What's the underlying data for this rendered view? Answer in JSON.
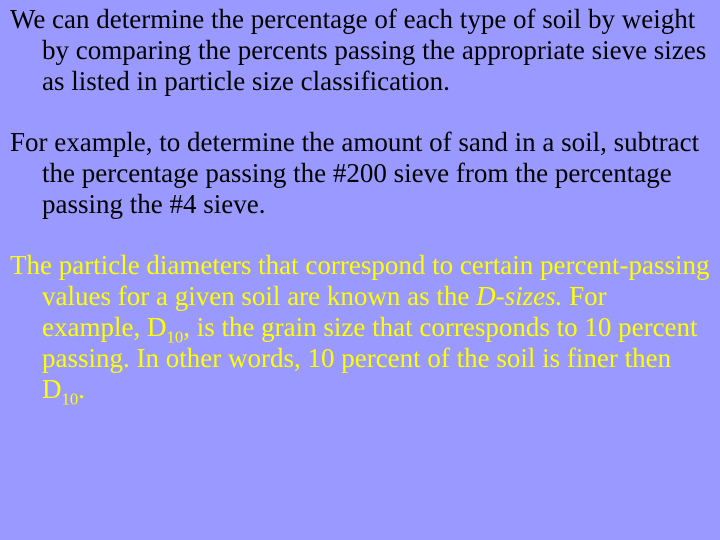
{
  "slide": {
    "background_color": "#9999ff",
    "font_family": "Times New Roman",
    "font_size_pt": 27,
    "text_color": "#000000",
    "highlight_color": "#ffff00",
    "paragraphs": {
      "p1": {
        "t1": "We can determine the percentage of each type of soil by weight by comparing the percents passing the appropriate sieve sizes as listed in particle size classification."
      },
      "p2": {
        "t1": "For example, to determine the amount of sand in a soil, subtract the percentage passing the #200 sieve from the percentage passing the #4 sieve."
      },
      "p3": {
        "t1": "The particle diameters that correspond to certain percent-passing values for a given soil are known as the ",
        "t2": "D-sizes.",
        "t3": " For example, D",
        "t4": "10",
        "t5": ", is the grain size that corresponds to 10 percent passing. In other words, 10 percent of the soil is finer then D",
        "t6": "10",
        "t7": "."
      }
    }
  }
}
